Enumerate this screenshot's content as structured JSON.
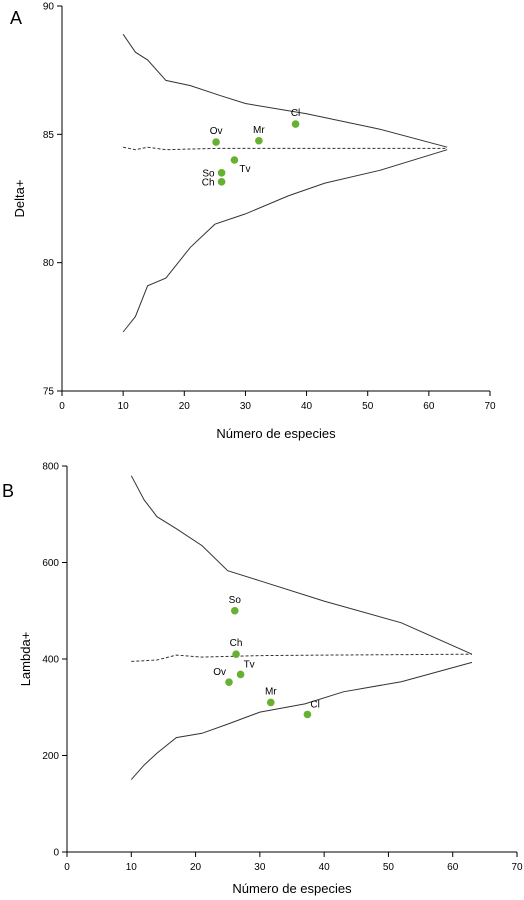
{
  "chart_data": [
    {
      "type": "scatter",
      "panel_label": "A",
      "xlabel": "Número de especies",
      "ylabel": "Delta+",
      "xlim": [
        0,
        70
      ],
      "ylim": [
        75,
        90
      ],
      "xticks": [
        0,
        10,
        20,
        30,
        40,
        50,
        60,
        70
      ],
      "yticks": [
        75,
        80,
        85,
        90
      ],
      "funnel_upper": [
        [
          10,
          88.9
        ],
        [
          12,
          88.2
        ],
        [
          14,
          87.9
        ],
        [
          17,
          87.1
        ],
        [
          21,
          86.9
        ],
        [
          26,
          86.5
        ],
        [
          30,
          86.2
        ],
        [
          40,
          85.8
        ],
        [
          52,
          85.2
        ],
        [
          63,
          84.5
        ]
      ],
      "funnel_lower": [
        [
          10,
          77.3
        ],
        [
          12,
          77.9
        ],
        [
          14,
          79.1
        ],
        [
          17,
          79.4
        ],
        [
          21,
          80.6
        ],
        [
          25,
          81.5
        ],
        [
          30,
          81.9
        ],
        [
          37,
          82.6
        ],
        [
          43,
          83.1
        ],
        [
          52,
          83.6
        ],
        [
          63,
          84.4
        ]
      ],
      "mean_line": [
        [
          10,
          84.5
        ],
        [
          12,
          84.4
        ],
        [
          14,
          84.5
        ],
        [
          17,
          84.4
        ],
        [
          25,
          84.45
        ],
        [
          40,
          84.45
        ],
        [
          63,
          84.45
        ]
      ],
      "points": [
        {
          "label": "Ov",
          "x": 25.2,
          "y": 84.7,
          "label_pos": "above"
        },
        {
          "label": "Mr",
          "x": 32.2,
          "y": 84.75,
          "label_pos": "above"
        },
        {
          "label": "Cl",
          "x": 38.2,
          "y": 85.4,
          "label_pos": "above"
        },
        {
          "label": "So",
          "x": 26.1,
          "y": 83.5,
          "label_pos": "left"
        },
        {
          "label": "Tv",
          "x": 28.2,
          "y": 84.0,
          "label_pos": "below-right"
        },
        {
          "label": "Ch",
          "x": 26.1,
          "y": 83.15,
          "label_pos": "left"
        }
      ]
    },
    {
      "type": "scatter",
      "panel_label": "B",
      "xlabel": "Número de especies",
      "ylabel": "Lambda+",
      "xlim": [
        0,
        70
      ],
      "ylim": [
        0,
        800
      ],
      "xticks": [
        0,
        10,
        20,
        30,
        40,
        50,
        60,
        70
      ],
      "yticks": [
        0,
        200,
        400,
        600,
        800
      ],
      "funnel_upper": [
        [
          10,
          780
        ],
        [
          12,
          730
        ],
        [
          14,
          695
        ],
        [
          17,
          670
        ],
        [
          21,
          635
        ],
        [
          25,
          583
        ],
        [
          30,
          562
        ],
        [
          40,
          520
        ],
        [
          52,
          475
        ],
        [
          63,
          410
        ]
      ],
      "funnel_lower": [
        [
          10,
          150
        ],
        [
          12,
          180
        ],
        [
          14,
          205
        ],
        [
          17,
          237
        ],
        [
          21,
          246
        ],
        [
          25,
          265
        ],
        [
          30,
          290
        ],
        [
          37,
          307
        ],
        [
          43,
          332
        ],
        [
          52,
          353
        ],
        [
          63,
          393
        ]
      ],
      "mean_line": [
        [
          10,
          395
        ],
        [
          14,
          398
        ],
        [
          17,
          408
        ],
        [
          21,
          404
        ],
        [
          30,
          407
        ],
        [
          40,
          408
        ],
        [
          63,
          410
        ]
      ],
      "points": [
        {
          "label": "So",
          "x": 26.1,
          "y": 500,
          "label_pos": "above"
        },
        {
          "label": "Ch",
          "x": 26.3,
          "y": 410,
          "label_pos": "above"
        },
        {
          "label": "Ov",
          "x": 25.2,
          "y": 352,
          "label_pos": "above-left"
        },
        {
          "label": "Tv",
          "x": 27.0,
          "y": 368,
          "label_pos": "above-right"
        },
        {
          "label": "Mr",
          "x": 31.7,
          "y": 310,
          "label_pos": "above"
        },
        {
          "label": "Cl",
          "x": 37.4,
          "y": 285,
          "label_pos": "above-right"
        }
      ]
    }
  ],
  "colors": {
    "point": "#66b032",
    "line": "#333333",
    "axis": "#000000"
  }
}
